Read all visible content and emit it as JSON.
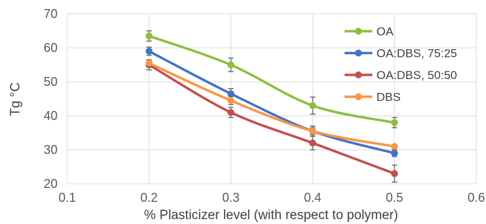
{
  "chart_data": {
    "type": "line",
    "title": "",
    "xlabel": "% Plasticizer level (with respect to polymer)",
    "ylabel": "Tg °C",
    "xlim": [
      0.1,
      0.6
    ],
    "ylim": [
      20,
      70
    ],
    "xticks": [
      "0.1",
      "0.2",
      "0.3",
      "0.4",
      "0.5",
      "0.6"
    ],
    "yticks": [
      "20",
      "30",
      "40",
      "50",
      "60",
      "70"
    ],
    "grid": "vertical and horizontal major gridlines",
    "legend_position": "top-right",
    "x": [
      0.2,
      0.3,
      0.4,
      0.5
    ],
    "series": [
      {
        "name": "OA",
        "color": "#8cbf3f",
        "values": [
          63.5,
          55,
          43,
          38
        ],
        "errors": [
          1.5,
          2,
          2.5,
          1.5
        ]
      },
      {
        "name": "OA:DBS, 75:25",
        "color": "#4472c4",
        "values": [
          59,
          46.5,
          35.5,
          29
        ],
        "errors": [
          1.2,
          1.5,
          1.5,
          1
        ]
      },
      {
        "name": "OA:DBS, 50:50",
        "color": "#c0504d",
        "values": [
          55,
          41,
          32,
          23
        ],
        "errors": [
          1.5,
          1.5,
          2,
          2.5
        ]
      },
      {
        "name": "DBS",
        "color": "#f79646",
        "values": [
          55.5,
          44.5,
          35.5,
          31
        ],
        "errors": [
          1,
          1.2,
          1,
          0.5
        ]
      }
    ]
  }
}
